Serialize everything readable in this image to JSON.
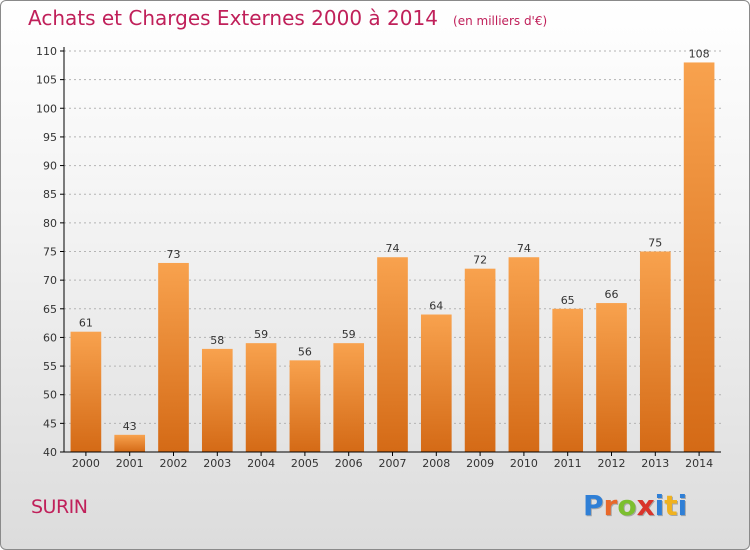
{
  "title": "Achats et Charges Externes 2000 à 2014",
  "unit_note": "(en milliers d'€)",
  "commune": "SURIN",
  "logo": {
    "text": "Proxiti",
    "letter_colors": [
      "#2f7fd6",
      "#e8682a",
      "#7cbf2f",
      "#d9342b",
      "#2f7fd6",
      "#f0b21f",
      "#2f7fd6"
    ]
  },
  "colors": {
    "title": "#c0205a",
    "bar_light": "#f8a24e",
    "bar_dark": "#d46a16",
    "axis": "#000000",
    "grid": "#b4b4b4",
    "text": "#333333"
  },
  "chart_data": {
    "type": "bar",
    "title": "Achats et Charges Externes 2000 à 2014",
    "subtitle": "(en milliers d'€)",
    "xlabel": "",
    "ylabel": "",
    "categories": [
      "2000",
      "2001",
      "2002",
      "2003",
      "2004",
      "2005",
      "2006",
      "2007",
      "2008",
      "2009",
      "2010",
      "2011",
      "2012",
      "2013",
      "2014"
    ],
    "values": [
      61,
      43,
      73,
      58,
      59,
      56,
      59,
      74,
      64,
      72,
      74,
      65,
      66,
      75,
      108
    ],
    "ylim": [
      40,
      110
    ],
    "yticks": [
      40,
      45,
      50,
      55,
      60,
      65,
      70,
      75,
      80,
      85,
      90,
      95,
      100,
      105,
      110
    ],
    "grid": true,
    "data_labels": true
  }
}
